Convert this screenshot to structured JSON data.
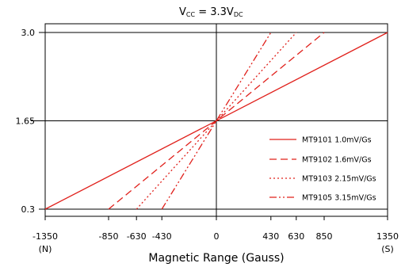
{
  "chart_data": {
    "type": "line",
    "title": {
      "main": "V",
      "sub": "CC",
      "eq": " =  3.3V",
      "unit_sub": "DC"
    },
    "xlabel": "Magnetic Range (Gauss)",
    "ylabel": "",
    "xlim": [
      -1350,
      1350
    ],
    "ylim": [
      0.3,
      3.0
    ],
    "x_ticks": [
      -1350,
      -850,
      -630,
      -430,
      0,
      430,
      630,
      850,
      1350
    ],
    "y_ticks": [
      0.3,
      1.65,
      3.0
    ],
    "x_tick_labels": [
      "-1350",
      "-850",
      "-630",
      "-430",
      "0",
      "430",
      "630",
      "850",
      "1350"
    ],
    "y_tick_labels": [
      "0.3",
      "1.65",
      "3.0"
    ],
    "x_end_notes": {
      "left": "(N)",
      "right": "(S)"
    },
    "line_color": "#e0201b",
    "series": [
      {
        "name": "MT9101 1.0mV/Gs",
        "dash": "solid",
        "x": [
          -1350,
          1350
        ],
        "y": [
          0.3,
          3.0
        ]
      },
      {
        "name": "MT9102 1.6mV/Gs",
        "dash": "dash",
        "x": [
          -850,
          850
        ],
        "y": [
          0.3,
          3.0
        ]
      },
      {
        "name": "MT9103 2.15mV/Gs",
        "dash": "dot",
        "x": [
          -630,
          630
        ],
        "y": [
          0.3,
          3.0
        ]
      },
      {
        "name": "MT9105 3.15mV/Gs",
        "dash": "dashdotdot",
        "x": [
          -430,
          430
        ],
        "y": [
          0.3,
          3.0
        ]
      }
    ],
    "legend_position": "lower-right",
    "grid": false
  }
}
